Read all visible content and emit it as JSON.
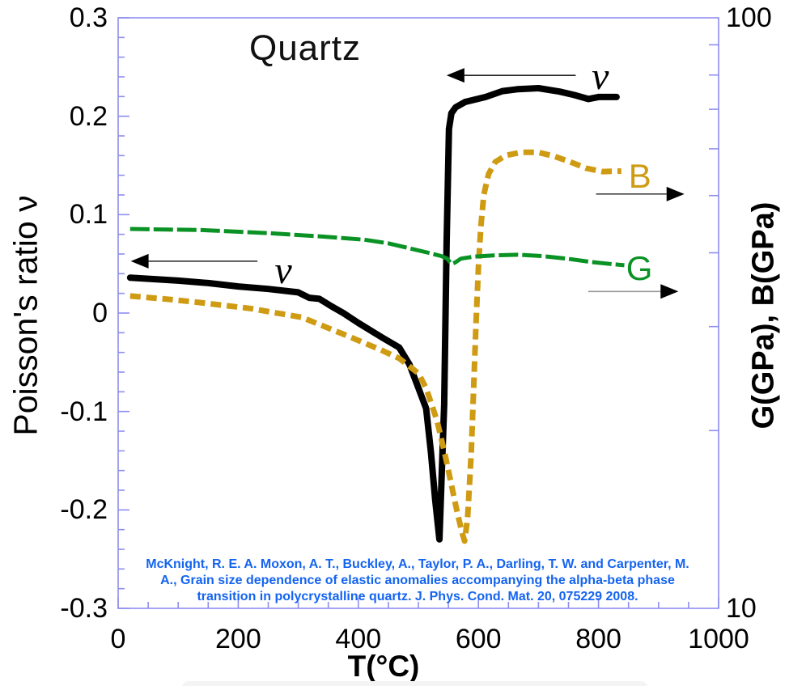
{
  "title": "Quartz",
  "axes": {
    "x": {
      "label": "T(°C)",
      "min": 0,
      "max": 1000,
      "minor_step": 50,
      "major_ticks": [
        {
          "value": 0,
          "label": "0"
        },
        {
          "value": 200,
          "label": "200"
        },
        {
          "value": 400,
          "label": "400"
        },
        {
          "value": 600,
          "label": "600"
        },
        {
          "value": 800,
          "label": "800"
        },
        {
          "value": 1000,
          "label": "1000"
        }
      ]
    },
    "y_left": {
      "label": "Poisson's ratio ν",
      "min": -0.3,
      "max": 0.3,
      "minor_step": 0.02,
      "major_ticks": [
        {
          "value": 0.3,
          "label": "0.3"
        },
        {
          "value": 0.2,
          "label": "0.2"
        },
        {
          "value": 0.1,
          "label": "0.1"
        },
        {
          "value": 0,
          "label": "0"
        },
        {
          "value": -0.1,
          "label": "-0.1"
        },
        {
          "value": -0.2,
          "label": "-0.2"
        },
        {
          "value": -0.3,
          "label": "-0.3"
        }
      ]
    },
    "y_right": {
      "label": "G(GPa), B(GPa)",
      "min": 10,
      "max": 100,
      "scale": "log",
      "major_ticks": [
        {
          "value": 100,
          "label": "100"
        },
        {
          "value": 10,
          "label": "10"
        }
      ],
      "minor_ticks": [
        20,
        30,
        40,
        50,
        60,
        70,
        80,
        90
      ]
    }
  },
  "colors": {
    "frame": "#8e8ef0",
    "nu": "#000000",
    "B": "#cf9b13",
    "G": "#0a9225",
    "citation": "#1464f0"
  },
  "annotations": [
    {
      "id": "nu-upper",
      "kind": "nu",
      "text": "ν",
      "axis": "left",
      "color": "#000000",
      "label_T": 803,
      "label_value": 0.24,
      "arrow": {
        "value": 0.2415,
        "from_T": 762,
        "to_T": 547,
        "direction": "left",
        "line_color": "#222222",
        "head_color": "#000000"
      }
    },
    {
      "id": "nu-lower",
      "kind": "nu",
      "text": "ν",
      "axis": "left",
      "color": "#000000",
      "label_T": 275,
      "label_value": 0.0427,
      "arrow": {
        "value": 0.0527,
        "from_T": 232,
        "to_T": 21,
        "direction": "left",
        "line_color": "#222222",
        "head_color": "#000000"
      }
    },
    {
      "id": "B-label",
      "kind": "B",
      "text": "B",
      "axis": "right",
      "color": "#cf9b13",
      "label_T": 869,
      "label_value": 53.9,
      "arrow": {
        "value": 50.3,
        "from_T": 796,
        "to_T": 943,
        "direction": "right",
        "line_color": "#444444",
        "head_color": "#000000"
      }
    },
    {
      "id": "G-label",
      "kind": "G",
      "text": "G",
      "axis": "right",
      "color": "#0a9225",
      "label_T": 868,
      "label_value": 37.6,
      "arrow": {
        "value": 34.4,
        "from_T": 783,
        "to_T": 933,
        "direction": "right",
        "line_color": "#999999",
        "head_color": "#000000"
      }
    }
  ],
  "citation": {
    "color": "#1464f0",
    "lines": [
      "McKnight, R. E. A. Moxon, A. T., Buckley, A., Taylor, P. A., Darling, T. W. and Carpenter, M.",
      "A., Grain size dependence of elastic anomalies accompanying the alpha-beta phase",
      "transition in polycrystalline quartz. J. Phys. Cond. Mat. 20, 075229 2008."
    ]
  },
  "chart_data": {
    "type": "line",
    "title": "Quartz",
    "xlabel": "T(°C)",
    "ylabel_left": "Poisson's ratio ν",
    "ylabel_right": "G(GPa), B(GPa)",
    "x_range": [
      0,
      1000
    ],
    "y_left_range": [
      -0.3,
      0.3
    ],
    "y_right_range": [
      10,
      100
    ],
    "y_right_scale": "log",
    "grid": false,
    "legend": "in-plot curve labels with arrows to their axes",
    "series": [
      {
        "name": "ν (Poisson's ratio)",
        "axis": "left",
        "color": "#000000",
        "style": "solid",
        "width": 8,
        "points": [
          [
            20,
            0.036
          ],
          [
            100,
            0.033
          ],
          [
            150,
            0.0305
          ],
          [
            200,
            0.027
          ],
          [
            250,
            0.0245
          ],
          [
            300,
            0.021
          ],
          [
            318,
            0.0155
          ],
          [
            335,
            0.0145
          ],
          [
            355,
            0.007
          ],
          [
            375,
            0
          ],
          [
            400,
            -0.01
          ],
          [
            440,
            -0.025
          ],
          [
            468,
            -0.035
          ],
          [
            485,
            -0.052
          ],
          [
            500,
            -0.076
          ],
          [
            513,
            -0.097
          ],
          [
            521,
            -0.142
          ],
          [
            528,
            -0.19
          ],
          [
            535,
            -0.23
          ],
          [
            543,
            -0.093
          ],
          [
            547,
            0.071
          ],
          [
            551,
            0.187
          ],
          [
            555,
            0.203
          ],
          [
            562,
            0.209
          ],
          [
            578,
            0.2145
          ],
          [
            612,
            0.2195
          ],
          [
            640,
            0.2255
          ],
          [
            666,
            0.2275
          ],
          [
            700,
            0.2285
          ],
          [
            735,
            0.225
          ],
          [
            760,
            0.2215
          ],
          [
            783,
            0.2175
          ],
          [
            800,
            0.2195
          ],
          [
            830,
            0.2195
          ]
        ]
      },
      {
        "name": "B (bulk modulus, GPa)",
        "axis": "right",
        "color": "#cf9b13",
        "style": "dashed",
        "width": 7,
        "points": [
          [
            20,
            33.8
          ],
          [
            80,
            33.4
          ],
          [
            130,
            33
          ],
          [
            220,
            32.2
          ],
          [
            306,
            31.1
          ],
          [
            383,
            28.9
          ],
          [
            437,
            27.4
          ],
          [
            468,
            26.5
          ],
          [
            500,
            25
          ],
          [
            513,
            23.6
          ],
          [
            531,
            20.8
          ],
          [
            544,
            18.3
          ],
          [
            555,
            16.2
          ],
          [
            565,
            14.5
          ],
          [
            573,
            13.4
          ],
          [
            577,
            13
          ],
          [
            582,
            14.2
          ],
          [
            588,
            18.3
          ],
          [
            592,
            23.6
          ],
          [
            596,
            30.3
          ],
          [
            600,
            37.8
          ],
          [
            604,
            44.3
          ],
          [
            609,
            50.2
          ],
          [
            617,
            54.4
          ],
          [
            628,
            57
          ],
          [
            646,
            58.5
          ],
          [
            672,
            59.2
          ],
          [
            699,
            59.2
          ],
          [
            726,
            58.3
          ],
          [
            753,
            57
          ],
          [
            780,
            55.6
          ],
          [
            807,
            54.9
          ],
          [
            838,
            55
          ]
        ]
      },
      {
        "name": "G (shear modulus, GPa)",
        "axis": "right",
        "color": "#0a9225",
        "style": "dashed-long",
        "width": 5,
        "points": [
          [
            20,
            43.9
          ],
          [
            140,
            43.7
          ],
          [
            248,
            43.2
          ],
          [
            342,
            42.6
          ],
          [
            410,
            42.1
          ],
          [
            450,
            41.5
          ],
          [
            490,
            40.6
          ],
          [
            517,
            40
          ],
          [
            538,
            39.5
          ],
          [
            548,
            39.1
          ],
          [
            555,
            38.3
          ],
          [
            561,
            38.5
          ],
          [
            571,
            39.1
          ],
          [
            592,
            39.4
          ],
          [
            625,
            39.6
          ],
          [
            666,
            39.7
          ],
          [
            706,
            39.5
          ],
          [
            747,
            39.1
          ],
          [
            787,
            38.6
          ],
          [
            820,
            38.3
          ],
          [
            843,
            38.1
          ]
        ]
      }
    ]
  }
}
